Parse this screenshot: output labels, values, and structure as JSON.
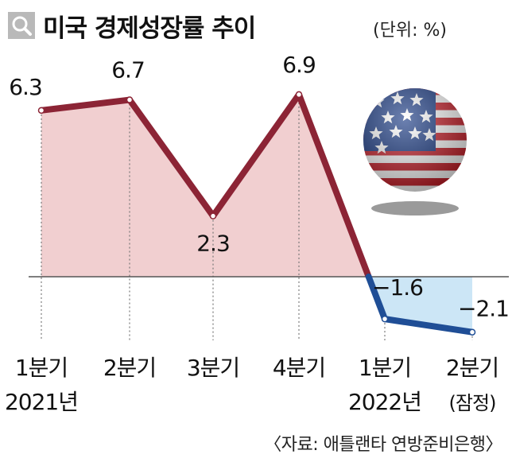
{
  "title": "미국 경제성장률 추이",
  "unit": "(단위: %)",
  "source": "〈자료: 애틀랜타 연방준비은행〉",
  "icons": {
    "search": "search-icon",
    "decoration": "us-flag-ball-icon"
  },
  "colors": {
    "positive_line": "#8c2435",
    "positive_fill": "#f1cfd0",
    "negative_line": "#1f4e96",
    "negative_fill": "#cce6f6",
    "axis": "#555555"
  },
  "chart_data": {
    "type": "area",
    "title": "미국 경제성장률 추이",
    "unit": "%",
    "categories": [
      {
        "quarter": "1분기",
        "year": "2021년"
      },
      {
        "quarter": "2분기",
        "year": ""
      },
      {
        "quarter": "3분기",
        "year": ""
      },
      {
        "quarter": "4분기",
        "year": ""
      },
      {
        "quarter": "1분기",
        "year": "2022년"
      },
      {
        "quarter": "2분기",
        "year": "(잠정)"
      }
    ],
    "values": [
      6.3,
      6.7,
      2.3,
      6.9,
      -1.6,
      -2.1
    ],
    "labels": [
      "6.3",
      "6.7",
      "2.3",
      "6.9",
      "−1.6",
      "−2.1"
    ],
    "ylim": [
      -2.8,
      8.2
    ],
    "grid": false
  }
}
